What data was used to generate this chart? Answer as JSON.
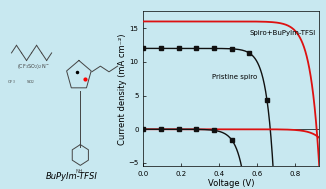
{
  "background_color": "#c8e8f0",
  "plot_bg_color": "#c8e8f0",
  "xlim": [
    0.0,
    0.93
  ],
  "ylim": [
    -5.5,
    17.5
  ],
  "xticks": [
    0.0,
    0.2,
    0.4,
    0.6,
    0.8
  ],
  "yticks": [
    -5,
    0,
    5,
    10,
    15
  ],
  "xlabel": "Voltage (V)",
  "ylabel": "Current density (mA cm⁻²)",
  "label_spiro_bupylm": "Spiro+BuPyIm-TFSI",
  "label_pristine": "Pristine spiro",
  "spiro_jsc": 16.0,
  "spiro_voc": 0.915,
  "pristine_jsc": 12.0,
  "pristine_voc": 0.67,
  "line_color_red": "#dd1111",
  "line_color_black": "#111111",
  "marker": "s",
  "marker_size": 3.0,
  "annotation_fontsize": 5.0,
  "axis_fontsize": 6.0,
  "tick_fontsize": 5.0,
  "title_text": "BuPyIm-TFSI"
}
